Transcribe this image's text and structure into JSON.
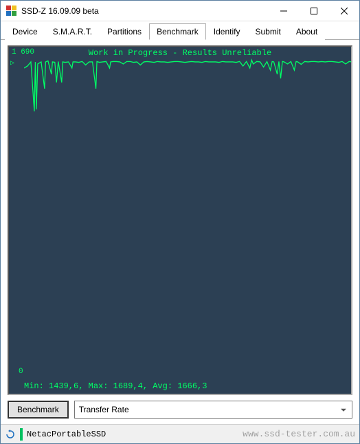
{
  "window": {
    "title": "SSD-Z 16.09.09 beta",
    "icon_colors": {
      "tl": "#d03030",
      "tr": "#f0c020",
      "bl": "#2070c0",
      "br": "#30a040"
    }
  },
  "tabs": [
    {
      "label": "Device",
      "active": false
    },
    {
      "label": "S.M.A.R.T.",
      "active": false
    },
    {
      "label": "Partitions",
      "active": false
    },
    {
      "label": "Benchmark",
      "active": true
    },
    {
      "label": "Identify",
      "active": false
    },
    {
      "label": "Submit",
      "active": false
    },
    {
      "label": "About",
      "active": false
    }
  ],
  "chart": {
    "type": "line",
    "header": "Work in Progress - Results Unreliable",
    "y_axis_top": "1 690",
    "y_axis_bottom": "0",
    "marker": "▷",
    "stats_line": "Min: 1439,6, Max: 1689,4, Avg: 1666,3",
    "background_color": "#2c4054",
    "line_color": "#00ff66",
    "text_color": "#00ff66",
    "grid_visible": false,
    "ylim": [
      0,
      1690
    ],
    "xlim": [
      0,
      100
    ],
    "series": [
      {
        "x": 0,
        "y": 1640
      },
      {
        "x": 1,
        "y": 1650
      },
      {
        "x": 2,
        "y": 1670
      },
      {
        "x": 3,
        "y": 1430
      },
      {
        "x": 3.3,
        "y": 1670
      },
      {
        "x": 3.6,
        "y": 1439
      },
      {
        "x": 4,
        "y": 1660
      },
      {
        "x": 5,
        "y": 1670
      },
      {
        "x": 6,
        "y": 1540
      },
      {
        "x": 6.3,
        "y": 1670
      },
      {
        "x": 7,
        "y": 1675
      },
      {
        "x": 8,
        "y": 1610
      },
      {
        "x": 8.3,
        "y": 1670
      },
      {
        "x": 9,
        "y": 1668
      },
      {
        "x": 9.5,
        "y": 1570
      },
      {
        "x": 10,
        "y": 1672
      },
      {
        "x": 11,
        "y": 1570
      },
      {
        "x": 11.3,
        "y": 1670
      },
      {
        "x": 12,
        "y": 1668
      },
      {
        "x": 13,
        "y": 1670
      },
      {
        "x": 14,
        "y": 1640
      },
      {
        "x": 14.3,
        "y": 1670
      },
      {
        "x": 15,
        "y": 1670
      },
      {
        "x": 16,
        "y": 1668
      },
      {
        "x": 17,
        "y": 1672
      },
      {
        "x": 18,
        "y": 1655
      },
      {
        "x": 19,
        "y": 1670
      },
      {
        "x": 20,
        "y": 1670
      },
      {
        "x": 21,
        "y": 1540
      },
      {
        "x": 21.3,
        "y": 1672
      },
      {
        "x": 22,
        "y": 1668
      },
      {
        "x": 23,
        "y": 1670
      },
      {
        "x": 24,
        "y": 1672
      },
      {
        "x": 25,
        "y": 1640
      },
      {
        "x": 25.3,
        "y": 1670
      },
      {
        "x": 26,
        "y": 1672
      },
      {
        "x": 27,
        "y": 1672
      },
      {
        "x": 28,
        "y": 1670
      },
      {
        "x": 29,
        "y": 1660
      },
      {
        "x": 30,
        "y": 1672
      },
      {
        "x": 31,
        "y": 1672
      },
      {
        "x": 32,
        "y": 1668
      },
      {
        "x": 33,
        "y": 1670
      },
      {
        "x": 34,
        "y": 1655
      },
      {
        "x": 35,
        "y": 1670
      },
      {
        "x": 36,
        "y": 1672
      },
      {
        "x": 37,
        "y": 1670
      },
      {
        "x": 38,
        "y": 1668
      },
      {
        "x": 39,
        "y": 1672
      },
      {
        "x": 40,
        "y": 1670
      },
      {
        "x": 41,
        "y": 1670
      },
      {
        "x": 42,
        "y": 1668
      },
      {
        "x": 43,
        "y": 1670
      },
      {
        "x": 44,
        "y": 1672
      },
      {
        "x": 45,
        "y": 1672
      },
      {
        "x": 46,
        "y": 1670
      },
      {
        "x": 47,
        "y": 1668
      },
      {
        "x": 48,
        "y": 1670
      },
      {
        "x": 49,
        "y": 1672
      },
      {
        "x": 50,
        "y": 1670
      },
      {
        "x": 51,
        "y": 1670
      },
      {
        "x": 52,
        "y": 1668
      },
      {
        "x": 53,
        "y": 1672
      },
      {
        "x": 54,
        "y": 1670
      },
      {
        "x": 55,
        "y": 1670
      },
      {
        "x": 56,
        "y": 1670
      },
      {
        "x": 57,
        "y": 1668
      },
      {
        "x": 58,
        "y": 1672
      },
      {
        "x": 59,
        "y": 1670
      },
      {
        "x": 60,
        "y": 1670
      },
      {
        "x": 61,
        "y": 1670
      },
      {
        "x": 62,
        "y": 1668
      },
      {
        "x": 63,
        "y": 1672
      },
      {
        "x": 64,
        "y": 1650
      },
      {
        "x": 65,
        "y": 1672
      },
      {
        "x": 66,
        "y": 1640
      },
      {
        "x": 66.5,
        "y": 1680
      },
      {
        "x": 67,
        "y": 1660
      },
      {
        "x": 68,
        "y": 1672
      },
      {
        "x": 69,
        "y": 1670
      },
      {
        "x": 70,
        "y": 1645
      },
      {
        "x": 71,
        "y": 1672
      },
      {
        "x": 72,
        "y": 1630
      },
      {
        "x": 72.5,
        "y": 1672
      },
      {
        "x": 73,
        "y": 1670
      },
      {
        "x": 74,
        "y": 1610
      },
      {
        "x": 74.5,
        "y": 1672
      },
      {
        "x": 75,
        "y": 1590
      },
      {
        "x": 75.5,
        "y": 1672
      },
      {
        "x": 76,
        "y": 1670
      },
      {
        "x": 77,
        "y": 1660
      },
      {
        "x": 78,
        "y": 1672
      },
      {
        "x": 79,
        "y": 1630
      },
      {
        "x": 79.5,
        "y": 1672
      },
      {
        "x": 80,
        "y": 1670
      },
      {
        "x": 81,
        "y": 1658
      },
      {
        "x": 82,
        "y": 1672
      },
      {
        "x": 83,
        "y": 1670
      },
      {
        "x": 84,
        "y": 1672
      },
      {
        "x": 85,
        "y": 1672
      },
      {
        "x": 86,
        "y": 1670
      },
      {
        "x": 87,
        "y": 1672
      },
      {
        "x": 88,
        "y": 1670
      },
      {
        "x": 89,
        "y": 1672
      },
      {
        "x": 90,
        "y": 1672
      },
      {
        "x": 91,
        "y": 1670
      },
      {
        "x": 92,
        "y": 1668
      },
      {
        "x": 93,
        "y": 1672
      },
      {
        "x": 94,
        "y": 1660
      },
      {
        "x": 95,
        "y": 1672
      },
      {
        "x": 96,
        "y": 1670
      },
      {
        "x": 97,
        "y": 1672
      },
      {
        "x": 98,
        "y": 1670
      },
      {
        "x": 99,
        "y": 1689
      },
      {
        "x": 100,
        "y": 1689
      }
    ]
  },
  "controls": {
    "benchmark_button": "Benchmark",
    "test_select": "Transfer Rate"
  },
  "statusbar": {
    "device": "NetacPortableSSD",
    "watermark": "www.ssd-tester.com.au"
  }
}
